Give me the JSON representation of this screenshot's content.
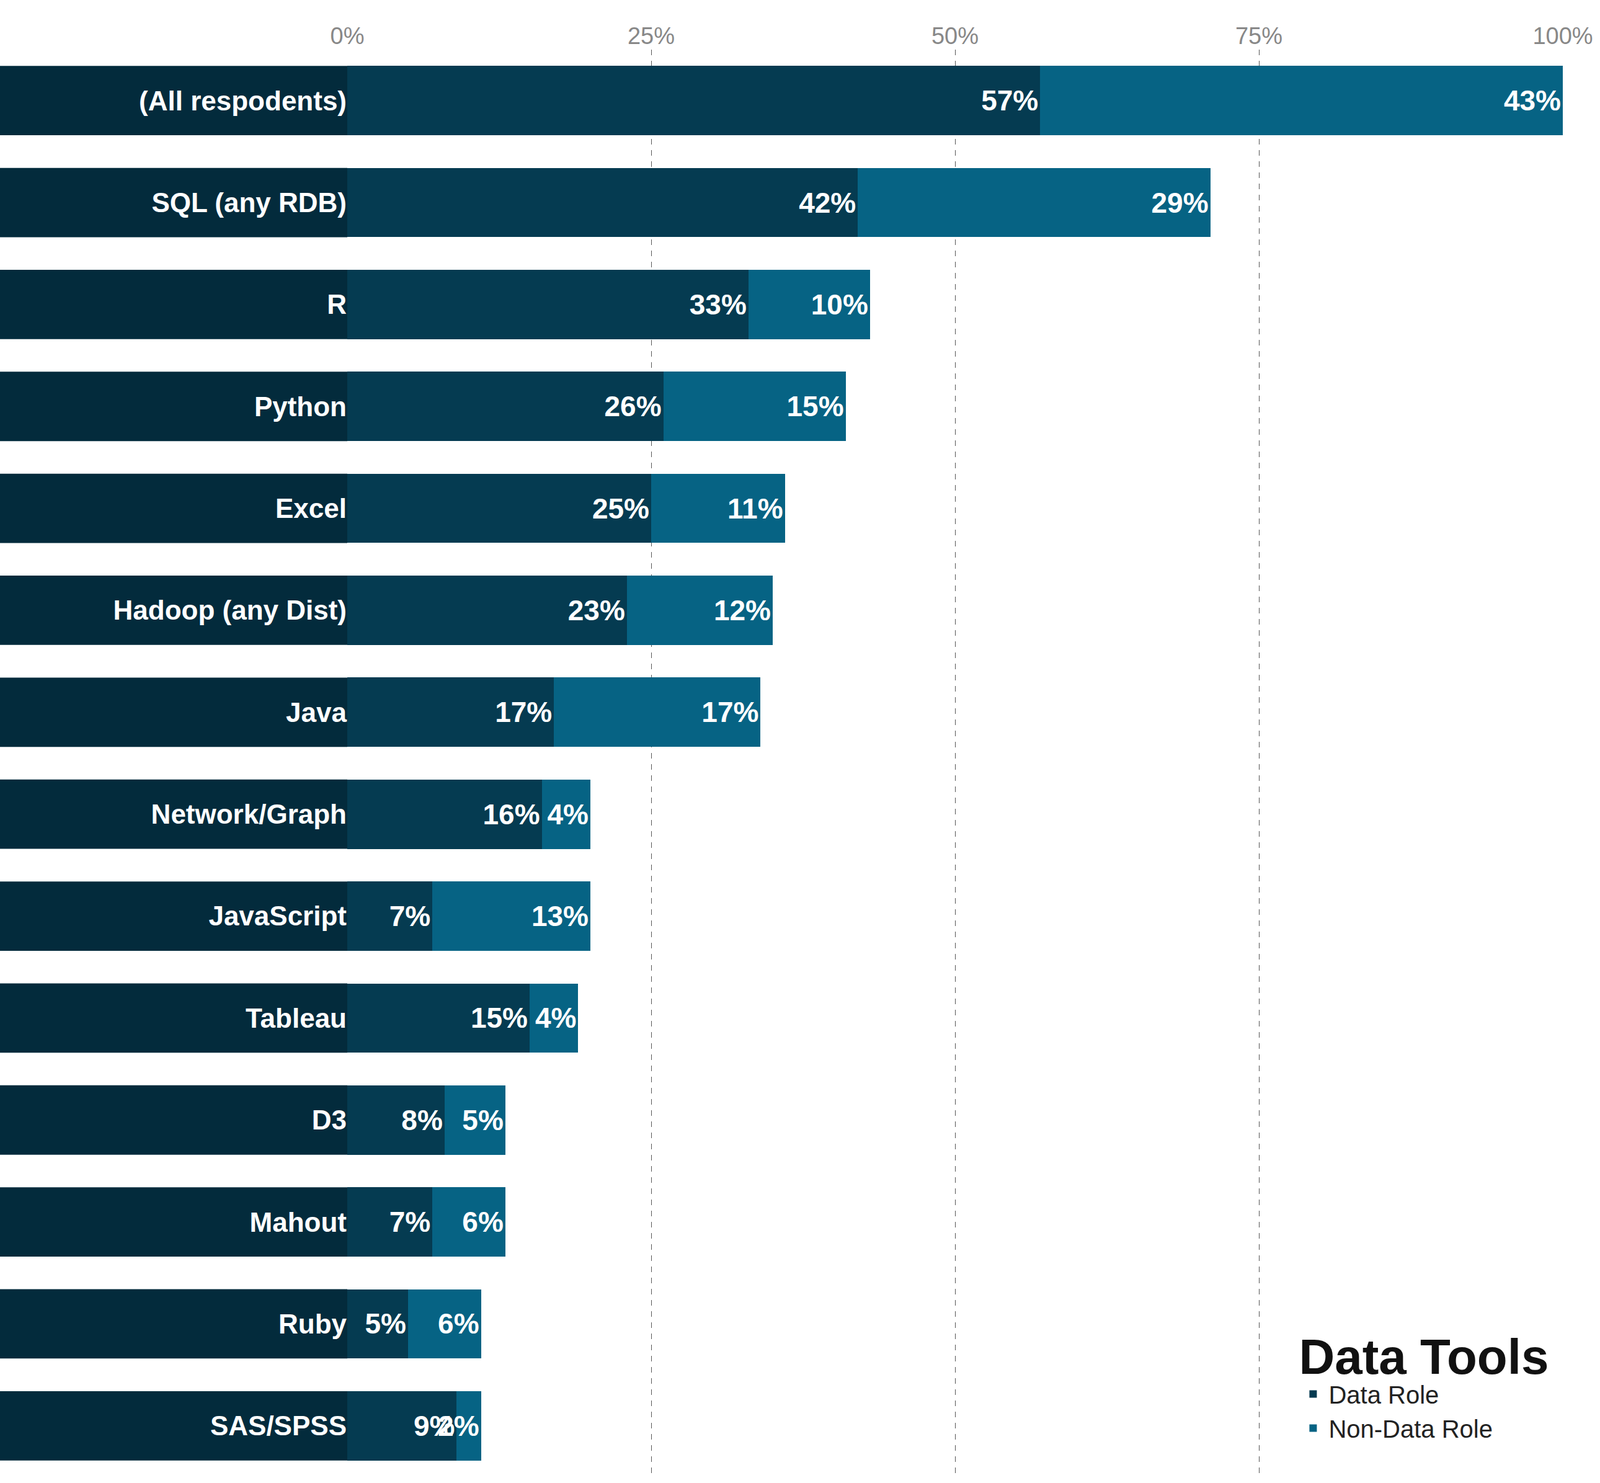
{
  "chart_data": {
    "type": "bar",
    "title": "Data Tools",
    "orientation": "horizontal",
    "stacked": true,
    "data_labels": true,
    "grid": true,
    "legend": "lower right",
    "categories": [
      "(All respodents)",
      "SQL (any RDB)",
      "R",
      "Python",
      "Excel",
      "Hadoop (any Dist)",
      "Java",
      "Network/Graph",
      "JavaScript",
      "Tableau",
      "D3",
      "Mahout",
      "Ruby",
      "SAS/SPSS"
    ],
    "series": [
      {
        "name": "Data Role",
        "color": "#053b51",
        "values": [
          57,
          42,
          33,
          26,
          25,
          23,
          17,
          16,
          7,
          15,
          8,
          7,
          5,
          9
        ],
        "value_labels": [
          "57%",
          "42%",
          "33%",
          "26%",
          "25%",
          "23%",
          "17%",
          "16%",
          "7%",
          "15%",
          "8%",
          "7%",
          "5%",
          "9%"
        ]
      },
      {
        "name": "Non-Data Role",
        "color": "#066384",
        "values": [
          43,
          29,
          10,
          15,
          11,
          12,
          17,
          4,
          13,
          4,
          5,
          6,
          6,
          2
        ],
        "value_labels": [
          "43%",
          "29%",
          "10%",
          "15%",
          "11%",
          "12%",
          "17%",
          "4%",
          "13%",
          "4%",
          "5%",
          "6%",
          "6%",
          "2%"
        ]
      }
    ],
    "xlim": [
      0,
      100
    ],
    "xticks": [
      {
        "value": 0,
        "label": "0%"
      },
      {
        "value": 25,
        "label": "25%"
      },
      {
        "value": 50,
        "label": "50%"
      },
      {
        "value": 75,
        "label": "75%"
      },
      {
        "value": 100,
        "label": "100%"
      }
    ]
  }
}
